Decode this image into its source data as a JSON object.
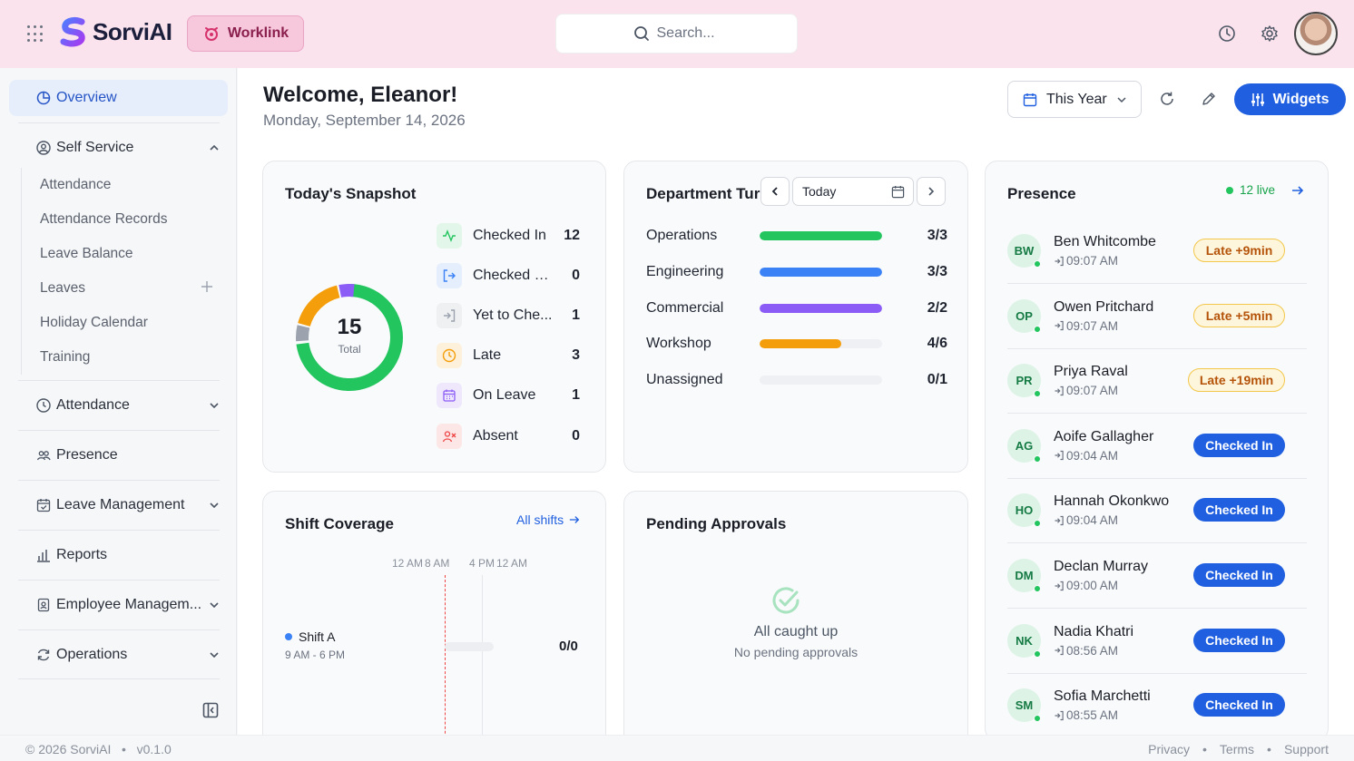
{
  "brand": {
    "name": "SorviAI",
    "worklink_label": "Worklink",
    "accent": "#1f5fe0"
  },
  "search": {
    "placeholder": "Search..."
  },
  "sidebar": {
    "overview": "Overview",
    "self_service": "Self Service",
    "self_service_items": [
      "Attendance",
      "Attendance Records",
      "Leave Balance",
      "Leaves",
      "Holiday Calendar",
      "Training"
    ],
    "groups": [
      "Attendance",
      "Presence",
      "Leave Management",
      "Reports",
      "Employee Managem...",
      "Operations"
    ]
  },
  "header": {
    "welcome": "Welcome, Eleanor!",
    "date": "Monday, September 14, 2026",
    "range_label": "This Year",
    "widgets_label": "Widgets"
  },
  "snapshot": {
    "title": "Today's Snapshot",
    "total": "15",
    "total_label": "Total",
    "rows": [
      {
        "label": "Checked In",
        "value": "12",
        "color": "#22c55e"
      },
      {
        "label": "Checked Out",
        "value": "0",
        "color": "#3b82f6"
      },
      {
        "label": "Yet to Che...",
        "value": "1",
        "color": "#9ca3af"
      },
      {
        "label": "Late",
        "value": "3",
        "color": "#f59e0b"
      },
      {
        "label": "On Leave",
        "value": "1",
        "color": "#8b5cf6"
      },
      {
        "label": "Absent",
        "value": "0",
        "color": "#ef4444"
      }
    ]
  },
  "department": {
    "title": "Department Turı",
    "date_label": "Today",
    "rows": [
      {
        "name": "Operations",
        "count": "3/3",
        "ratio": 1.0,
        "color": "#22c55e"
      },
      {
        "name": "Engineering",
        "count": "3/3",
        "ratio": 1.0,
        "color": "#3b82f6"
      },
      {
        "name": "Commercial",
        "count": "2/2",
        "ratio": 1.0,
        "color": "#8b5cf6"
      },
      {
        "name": "Workshop",
        "count": "4/6",
        "ratio": 0.67,
        "color": "#f59e0b"
      },
      {
        "name": "Unassigned",
        "count": "0/1",
        "ratio": 0.0,
        "color": "#9ca3af"
      }
    ]
  },
  "presence": {
    "title": "Presence",
    "live_label": "12 live",
    "people": [
      {
        "initials": "BW",
        "name": "Ben Whitcombe",
        "time": "09:07 AM",
        "status": "Late +9min",
        "kind": "late"
      },
      {
        "initials": "OP",
        "name": "Owen Pritchard",
        "time": "09:07 AM",
        "status": "Late +5min",
        "kind": "late"
      },
      {
        "initials": "PR",
        "name": "Priya Raval",
        "time": "09:07 AM",
        "status": "Late +19min",
        "kind": "late"
      },
      {
        "initials": "AG",
        "name": "Aoife Gallagher",
        "time": "09:04 AM",
        "status": "Checked In",
        "kind": "in"
      },
      {
        "initials": "HO",
        "name": "Hannah Okonkwo",
        "time": "09:04 AM",
        "status": "Checked In",
        "kind": "in"
      },
      {
        "initials": "DM",
        "name": "Declan Murray",
        "time": "09:00 AM",
        "status": "Checked In",
        "kind": "in"
      },
      {
        "initials": "NK",
        "name": "Nadia Khatri",
        "time": "08:56 AM",
        "status": "Checked In",
        "kind": "in"
      },
      {
        "initials": "SM",
        "name": "Sofia Marchetti",
        "time": "08:55 AM",
        "status": "Checked In",
        "kind": "in"
      }
    ]
  },
  "shift": {
    "title": "Shift Coverage",
    "link": "All shifts",
    "ticks": [
      "12 AM",
      "8 AM",
      "4 PM",
      "12 AM"
    ],
    "name": "Shift A",
    "hours": "9 AM - 6 PM",
    "count": "0/0"
  },
  "approvals": {
    "title": "Pending Approvals",
    "empty_title": "All caught up",
    "empty_sub": "No pending approvals"
  },
  "footer": {
    "copyright": "© 2026 SorviAI",
    "version": "v0.1.0",
    "links": [
      "Privacy",
      "Terms",
      "Support"
    ]
  }
}
